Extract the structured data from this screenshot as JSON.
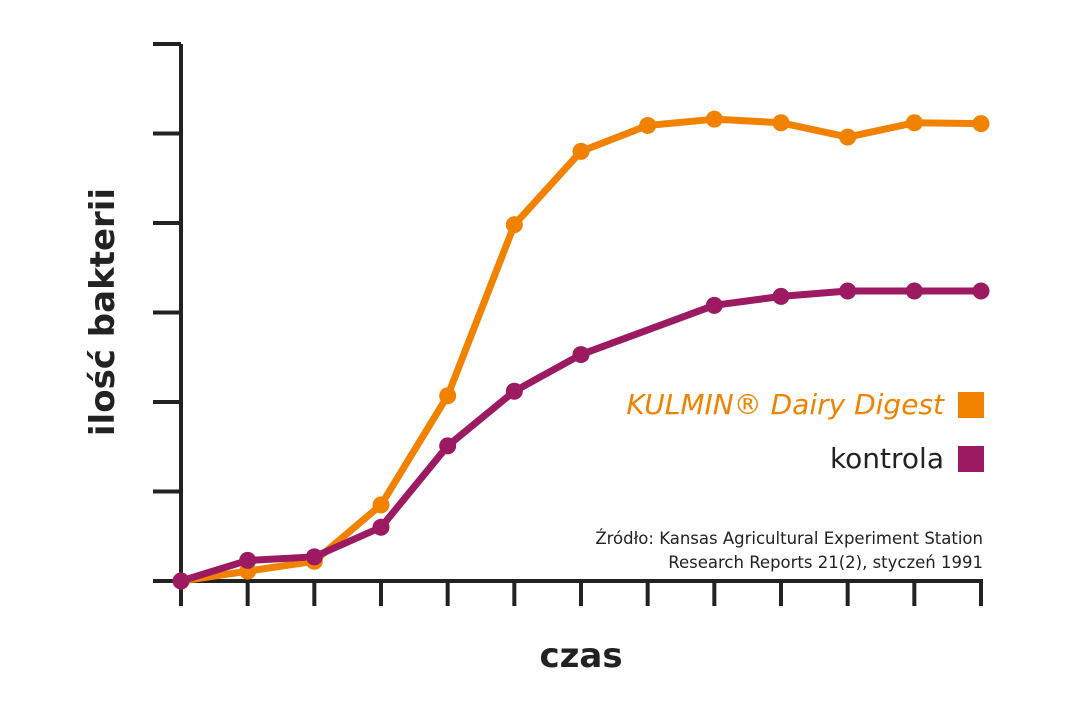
{
  "chart_data": {
    "type": "line",
    "title": "",
    "xlabel": "czas",
    "ylabel": "ilość bakterii",
    "x": [
      0,
      1,
      2,
      3,
      4,
      5,
      6,
      7,
      8,
      9,
      10,
      11,
      12
    ],
    "xlim": [
      0,
      12
    ],
    "ylim": [
      0,
      6
    ],
    "yticks_count": 7,
    "grid": false,
    "legend_position": "right",
    "series": [
      {
        "name": "KULMIN® Dairy Digest",
        "color": "#f08200",
        "values": [
          0,
          0.11,
          0.22,
          0.85,
          2.07,
          3.98,
          4.8,
          5.09,
          5.16,
          5.12,
          4.96,
          5.12,
          5.11
        ]
      },
      {
        "name": "kontrola",
        "color": "#9b1a62",
        "values": [
          0,
          0.23,
          0.27,
          0.6,
          1.51,
          2.12,
          2.53,
          null,
          3.08,
          3.18,
          3.24,
          3.24,
          3.24
        ]
      }
    ],
    "annotations": [
      "Źródło: Kansas Agricultural Experiment Station",
      "Research Reports 21(2), styczeń 1991"
    ]
  }
}
